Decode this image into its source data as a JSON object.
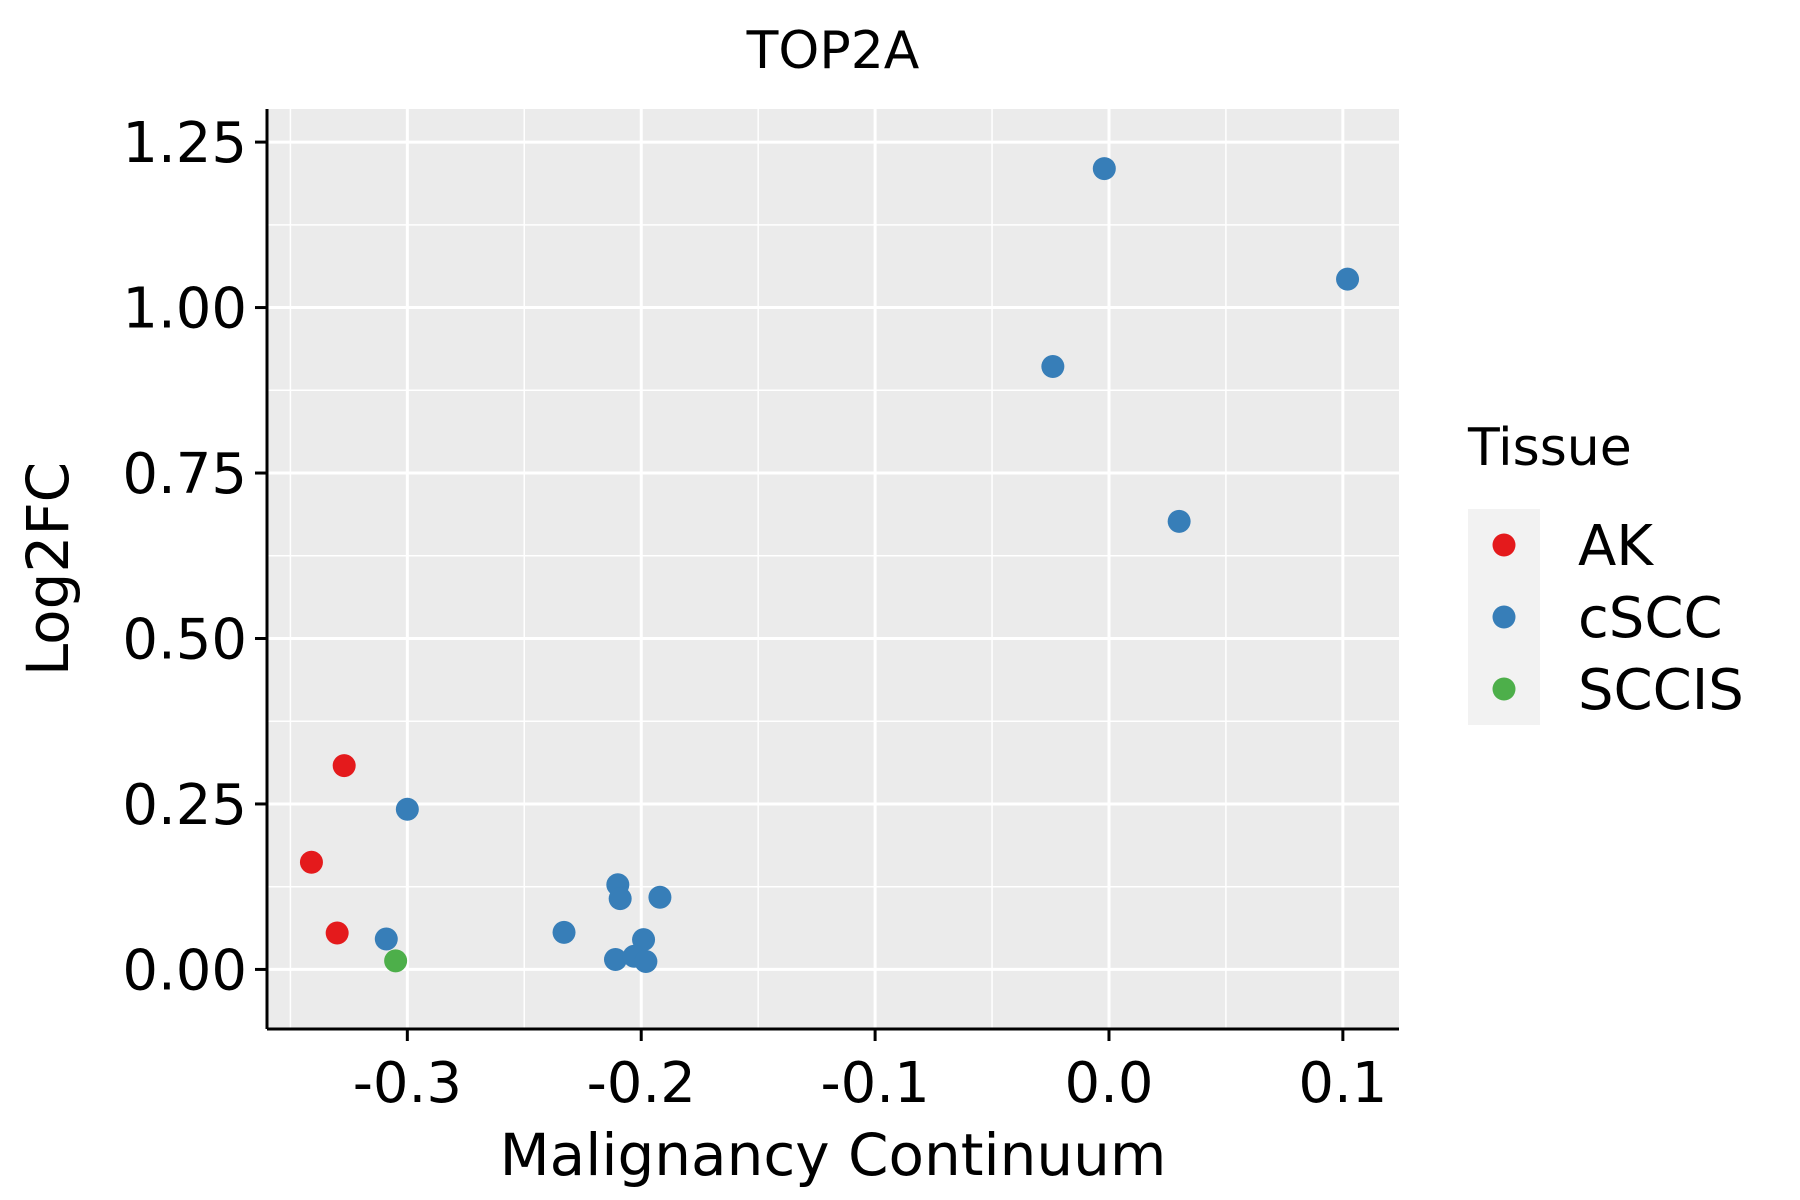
{
  "chart_data": {
    "type": "scatter",
    "title": "TOP2A",
    "xlabel": "Malignancy Continuum",
    "ylabel": "Log2FC",
    "xlim": [
      -0.36,
      0.124
    ],
    "ylim": [
      -0.09,
      1.3
    ],
    "xticks": [
      -0.3,
      -0.2,
      -0.1,
      0.0,
      0.1
    ],
    "xtick_labels": [
      "-0.3",
      "-0.2",
      "-0.1",
      "0.0",
      "0.1"
    ],
    "yticks": [
      0.0,
      0.25,
      0.5,
      0.75,
      1.0,
      1.25
    ],
    "ytick_labels": [
      "0.00",
      "0.25",
      "0.50",
      "0.75",
      "1.00",
      "1.25"
    ],
    "legend": {
      "title": "Tissue",
      "position": "right"
    },
    "series": [
      {
        "name": "AK",
        "color": "#E41A1C",
        "points": [
          {
            "x": -0.327,
            "y": 0.308
          },
          {
            "x": -0.341,
            "y": 0.162
          },
          {
            "x": -0.33,
            "y": 0.055
          }
        ]
      },
      {
        "name": "cSCC",
        "color": "#377EB8",
        "points": [
          {
            "x": -0.002,
            "y": 1.21
          },
          {
            "x": 0.102,
            "y": 1.043
          },
          {
            "x": -0.024,
            "y": 0.911
          },
          {
            "x": 0.03,
            "y": 0.677
          },
          {
            "x": -0.3,
            "y": 0.242
          },
          {
            "x": -0.309,
            "y": 0.046
          },
          {
            "x": -0.233,
            "y": 0.056
          },
          {
            "x": -0.21,
            "y": 0.128
          },
          {
            "x": -0.209,
            "y": 0.107
          },
          {
            "x": -0.192,
            "y": 0.109
          },
          {
            "x": -0.199,
            "y": 0.045
          },
          {
            "x": -0.211,
            "y": 0.015
          },
          {
            "x": -0.203,
            "y": 0.02
          },
          {
            "x": -0.198,
            "y": 0.012
          }
        ]
      },
      {
        "name": "SCCIS",
        "color": "#4DAF4A",
        "points": [
          {
            "x": -0.305,
            "y": 0.013
          }
        ]
      }
    ]
  },
  "colors": {
    "panel_background": "#EBEBEB",
    "gridline": "#FFFFFF",
    "axis": "#000000",
    "legend_key_background": "#F2F2F2"
  }
}
